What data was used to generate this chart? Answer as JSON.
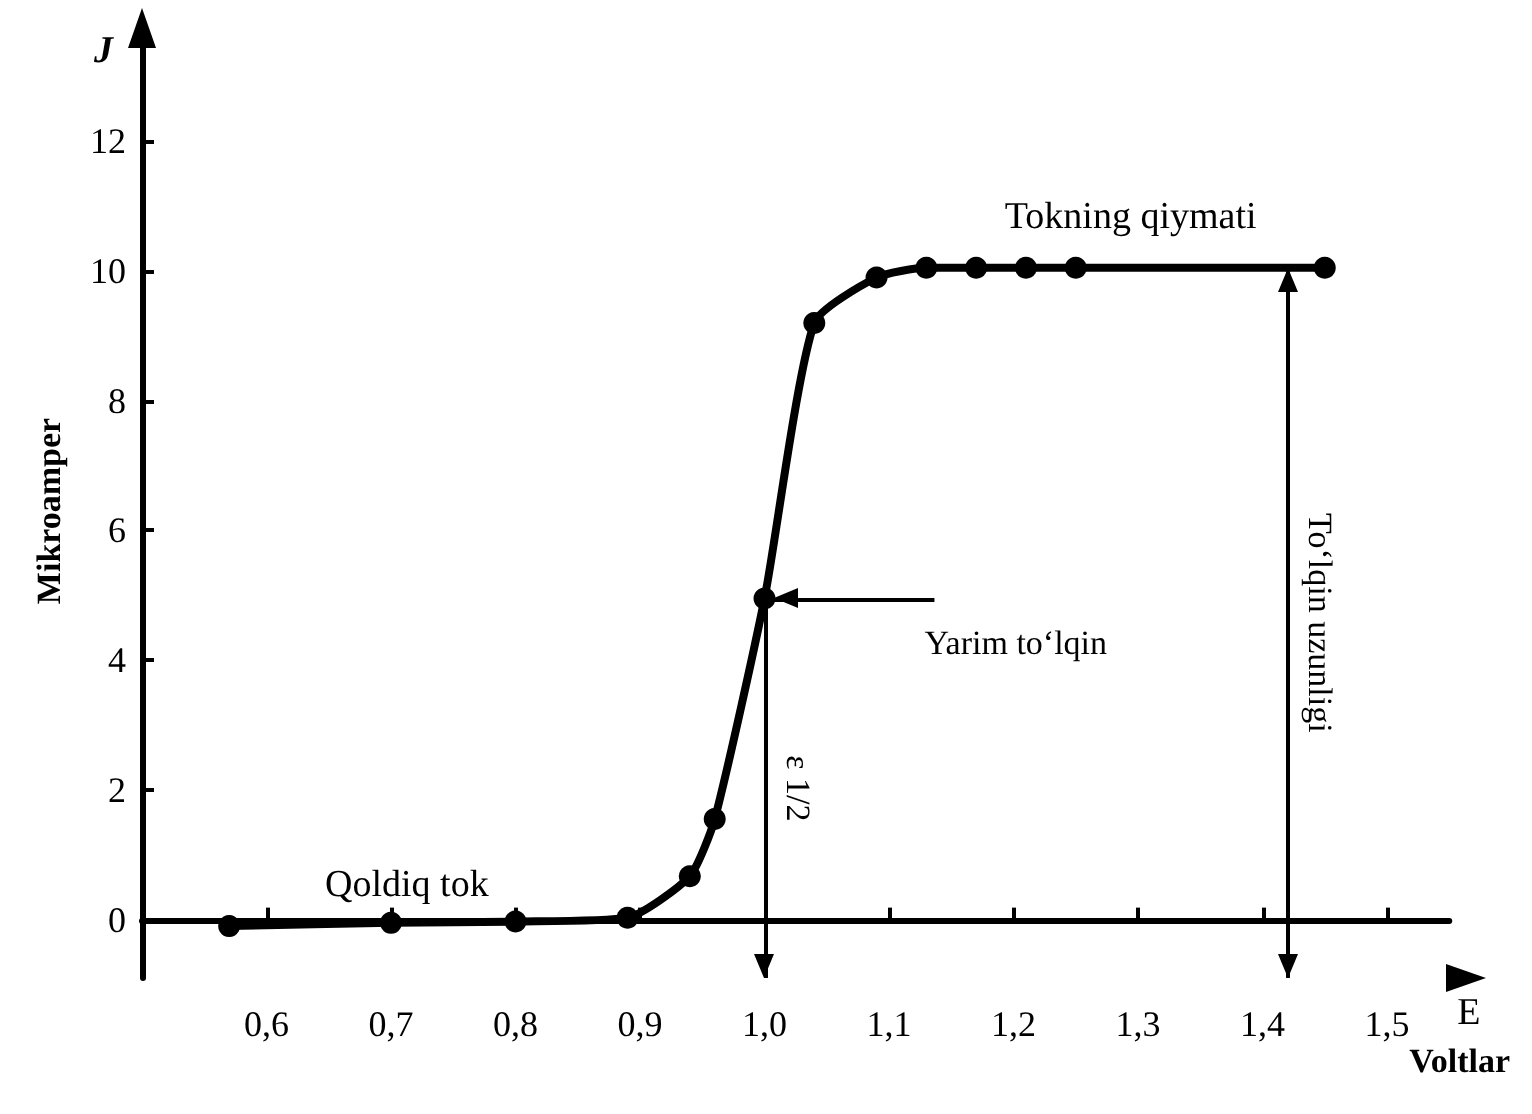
{
  "chart_data": {
    "type": "line",
    "xlabel": "Voltlar",
    "ylabel": "Mikroamper",
    "x": [
      0.57,
      0.7,
      0.8,
      0.89,
      0.94,
      0.96,
      1.0,
      1.04,
      1.09,
      1.13,
      1.17,
      1.21,
      1.25,
      1.45
    ],
    "series": [
      {
        "color": "#000000",
        "values": [
          -0.1,
          -0.05,
          -0.03,
          0.03,
          0.67,
          1.55,
          4.95,
          9.2,
          9.9,
          10.05,
          10.05,
          10.05,
          10.05,
          10.05
        ]
      }
    ],
    "xlim": [
      0.5,
      1.55
    ],
    "ylim": [
      -0.9,
      13.5
    ],
    "xticks": [
      {
        "value": 0.6,
        "label": "0,6"
      },
      {
        "value": 0.7,
        "label": "0,7"
      },
      {
        "value": 0.8,
        "label": "0,8"
      },
      {
        "value": 0.9,
        "label": "0,9"
      },
      {
        "value": 1.0,
        "label": "1,0"
      },
      {
        "value": 1.1,
        "label": "1,1"
      },
      {
        "value": 1.2,
        "label": "1,2"
      },
      {
        "value": 1.3,
        "label": "1,3"
      },
      {
        "value": 1.4,
        "label": "1,4"
      },
      {
        "value": 1.5,
        "label": "1,5"
      }
    ],
    "yticks": [
      0,
      2,
      4,
      6,
      8,
      10,
      12
    ],
    "ref_lines": [
      {
        "axis": "x",
        "value": 1.0,
        "label": "ε 1/2"
      },
      {
        "axis": "x",
        "value": 1.42,
        "label": "To‘lqin uzunligi"
      },
      {
        "axis": "y",
        "value": 4.95,
        "label": "Yarim to‘lqin"
      }
    ],
    "annotations": [
      "J",
      "E",
      "Qoldiq tok",
      "Tokning qiymati"
    ],
    "grid": false,
    "marker": "circle",
    "line_style": "solid"
  }
}
